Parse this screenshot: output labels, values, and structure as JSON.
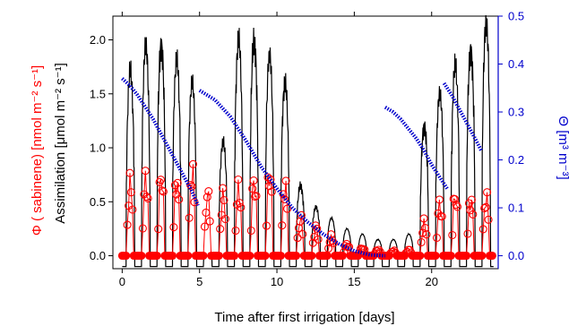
{
  "colors": {
    "assimilation": "#000000",
    "sabinene": "#ff0000",
    "theta": "#0000cc",
    "right_axis": "#0000cc"
  },
  "chart_data": {
    "type": "line",
    "xlabel": "Time after first irrigation [days]",
    "ylabel_left_red": "Φ ( sabinene)   [nmol m⁻² s⁻¹]",
    "ylabel_left_black": "Assimilation [μmol m⁻² s⁻¹]",
    "ylabel_right": "Θ [m³ m⁻³]",
    "xlim": [
      -0.6,
      24.3
    ],
    "ylim_left": [
      -0.12,
      2.22
    ],
    "ylim_right": [
      -0.027,
      0.5
    ],
    "x_ticks": [
      0,
      5,
      10,
      15,
      20
    ],
    "y_left_ticks": [
      "0.0",
      "0.5",
      "1.0",
      "1.5",
      "2.0"
    ],
    "y_right_ticks": [
      "0.0",
      "0.1",
      "0.2",
      "0.3",
      "0.4",
      "0.5"
    ],
    "day_peaks_assimilation": [
      1.7,
      1.95,
      1.95,
      1.8,
      1.6,
      0.0,
      1.05,
      2.0,
      2.0,
      1.85,
      1.6,
      0.65,
      0.45,
      0.35,
      0.25,
      0.2,
      0.15,
      0.15,
      0.2,
      1.2,
      1.5,
      1.75,
      1.9,
      2.15
    ],
    "sabinene_day_peaks": [
      0.78,
      0.82,
      0.85,
      0.8,
      0.9,
      0.65,
      0.65,
      0.72,
      0.8,
      0.88,
      0.75,
      0.4,
      0.3,
      0.2,
      0.12,
      0.08,
      0.06,
      0.05,
      0.06,
      0.35,
      0.55,
      0.65,
      0.6,
      0.62
    ],
    "series": [
      {
        "axis": "right",
        "style": "dotted",
        "x": [
          0.0,
          0.5,
          1.0,
          1.5,
          2.0,
          2.5,
          3.0,
          3.5,
          4.0,
          4.5,
          4.9
        ],
        "values": [
          0.37,
          0.355,
          0.335,
          0.31,
          0.285,
          0.255,
          0.225,
          0.195,
          0.165,
          0.135,
          0.105
        ]
      },
      {
        "axis": "right",
        "style": "dotted",
        "x": [
          5.0,
          6.0,
          7.0,
          8.0,
          9.0,
          10.0,
          11.0,
          12.0,
          13.0,
          14.0,
          15.0,
          16.0,
          17.0
        ],
        "values": [
          0.345,
          0.325,
          0.29,
          0.24,
          0.185,
          0.14,
          0.1,
          0.07,
          0.045,
          0.025,
          0.01,
          0.002,
          0.0
        ]
      },
      {
        "axis": "right",
        "style": "dotted",
        "x": [
          17.0,
          17.5,
          18.0,
          18.5,
          19.0,
          19.5,
          20.0,
          20.5,
          21.0
        ],
        "values": [
          0.31,
          0.3,
          0.285,
          0.265,
          0.245,
          0.22,
          0.19,
          0.165,
          0.14
        ]
      },
      {
        "axis": "right",
        "style": "dotted",
        "x": [
          20.8,
          21.3,
          21.8,
          22.3,
          22.8,
          23.2
        ],
        "values": [
          0.36,
          0.335,
          0.305,
          0.275,
          0.245,
          0.22
        ]
      }
    ]
  }
}
